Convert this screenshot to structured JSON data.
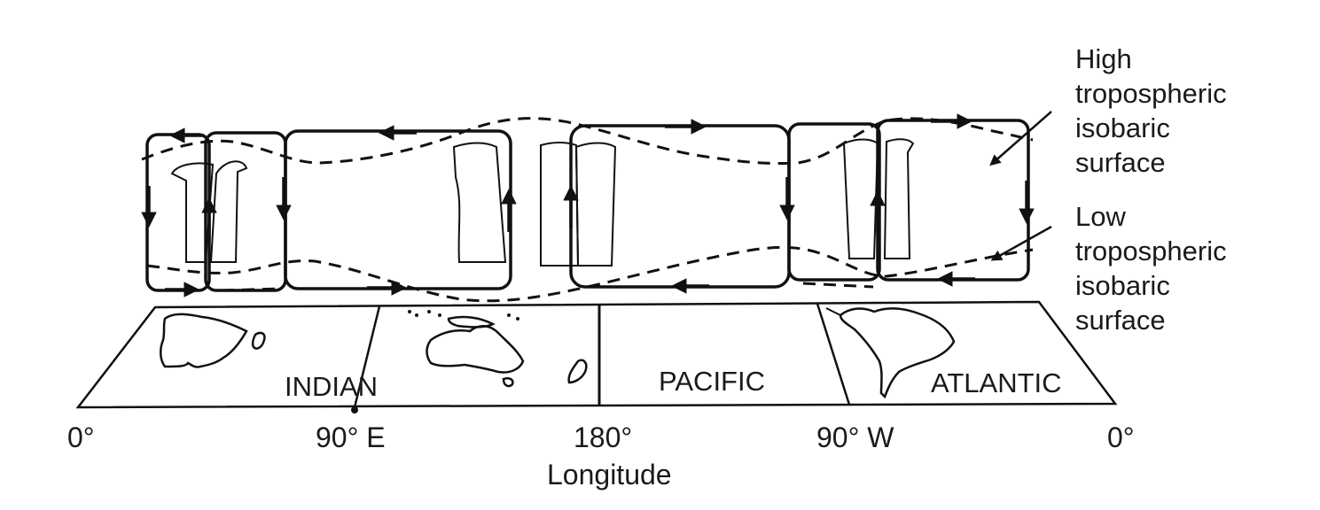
{
  "longitude_labels": [
    "0°",
    "90° E",
    "180°",
    "90° W",
    "0°"
  ],
  "axis_title": "Longitude",
  "oceans": [
    "INDIAN",
    "PACIFIC",
    "ATLANTIC"
  ],
  "legend": {
    "high": [
      "High",
      "tropospheric",
      "isobaric",
      "surface"
    ],
    "low": [
      "Low",
      "tropospheric",
      "isobaric",
      "surface"
    ]
  },
  "colors": {
    "ink": "#111111",
    "background": "#ffffff"
  }
}
